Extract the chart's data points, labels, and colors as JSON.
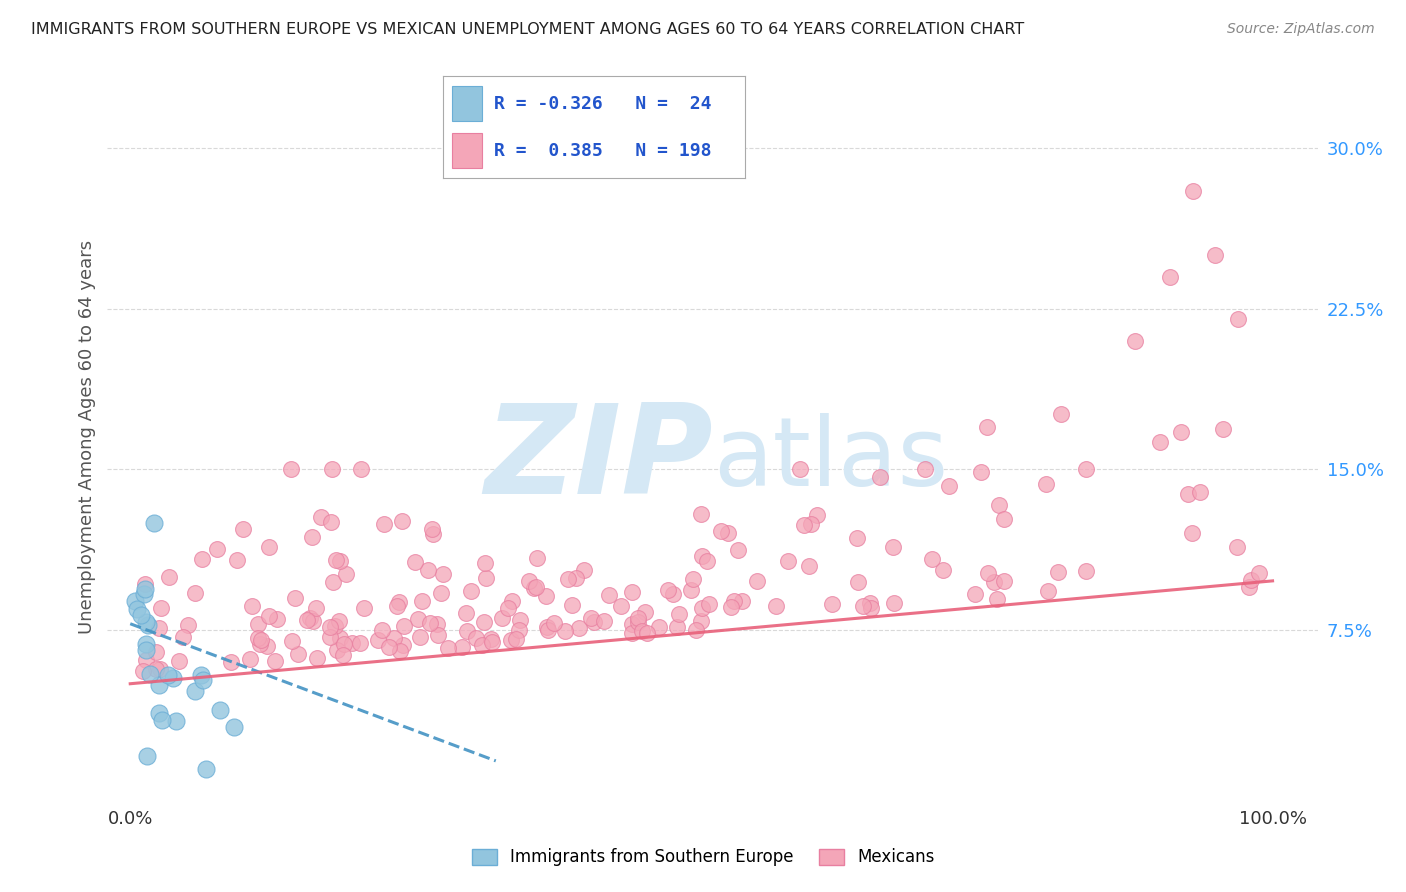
{
  "title": "IMMIGRANTS FROM SOUTHERN EUROPE VS MEXICAN UNEMPLOYMENT AMONG AGES 60 TO 64 YEARS CORRELATION CHART",
  "source": "Source: ZipAtlas.com",
  "ylabel": "Unemployment Among Ages 60 to 64 years",
  "yticks": [
    0.075,
    0.15,
    0.225,
    0.3
  ],
  "ytick_labels": [
    "7.5%",
    "15.0%",
    "22.5%",
    "30.0%"
  ],
  "xlim": [
    -0.02,
    1.04
  ],
  "ylim": [
    -0.005,
    0.335
  ],
  "blue_color": "#92c5de",
  "pink_color": "#f4a6b8",
  "blue_edge_color": "#6baed6",
  "pink_edge_color": "#e87fa0",
  "blue_line_color": "#4393c3",
  "pink_line_color": "#e8607a",
  "watermark_zip": "ZIP",
  "watermark_atlas": "atlas",
  "watermark_color": "#d5e8f5",
  "background_color": "#ffffff",
  "grid_color": "#d9d9d9",
  "title_color": "#222222",
  "axis_label_color": "#555555",
  "tick_color": "#3399ff",
  "blue_n": 24,
  "pink_n": 198,
  "blue_R": -0.326,
  "pink_R": 0.385,
  "legend_blue_text": "R = -0.326   N =  24",
  "legend_pink_text": "R =  0.385   N = 198"
}
